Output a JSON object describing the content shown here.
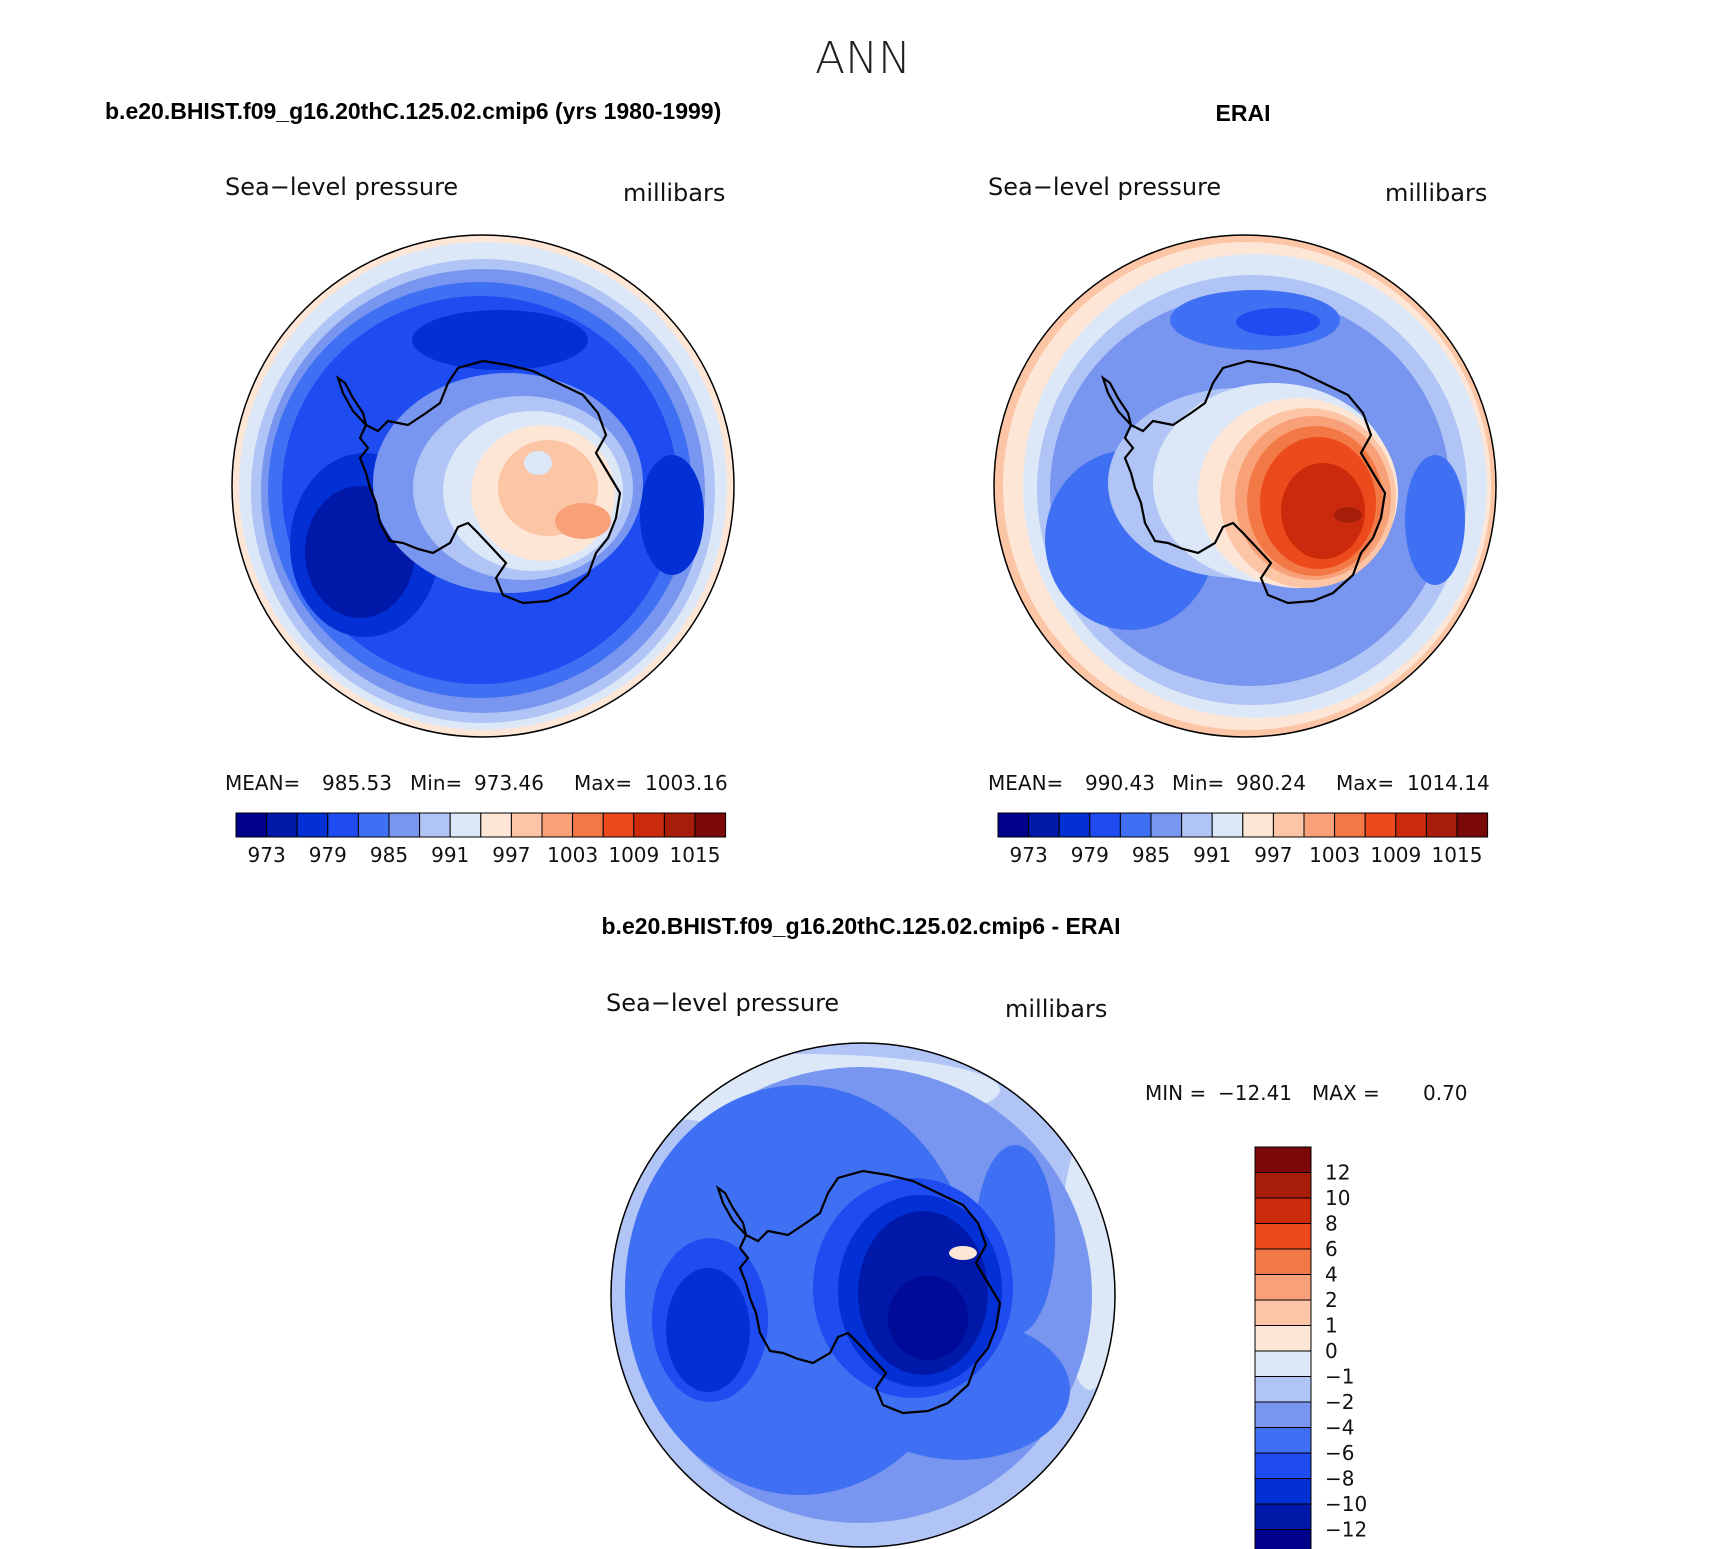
{
  "figure": {
    "title": "ANN",
    "panels": [
      {
        "heading": "b.e20.BHIST.f09_g16.20thC.125.02.cmip6 (yrs 1980-1999)",
        "variable": "Sea−level pressure",
        "units": "millibars",
        "stats": {
          "mean_label": "MEAN=",
          "mean": "985.53",
          "min_label": "Min=",
          "min": "973.46",
          "max_label": "Max=",
          "max": "1003.16"
        }
      },
      {
        "heading": "ERAI",
        "variable": "Sea−level pressure",
        "units": "millibars",
        "stats": {
          "mean_label": "MEAN=",
          "mean": "990.43",
          "min_label": "Min=",
          "min": "980.24",
          "max_label": "Max=",
          "max": "1014.14"
        }
      },
      {
        "heading": "b.e20.BHIST.f09_g16.20thC.125.02.cmip6 - ERAI",
        "variable": "Sea−level pressure",
        "units": "millibars",
        "stats": {
          "min_label": "MIN =",
          "min": "−12.41",
          "max_label": "MAX =",
          "max": "0.70"
        }
      }
    ],
    "abs_colorbar": {
      "colors": [
        "#00008b",
        "#0019a8",
        "#0230d4",
        "#1e4cf0",
        "#3f6ff2",
        "#7896f0",
        "#b0c4f5",
        "#dce8f8",
        "#fde6d6",
        "#fbc5a6",
        "#f8a078",
        "#f27845",
        "#ec4a1c",
        "#cc2a0c",
        "#a61e0a",
        "#7a0808"
      ],
      "labels": [
        "973",
        "979",
        "985",
        "991",
        "997",
        "1003",
        "1009",
        "1015"
      ]
    },
    "diff_colorbar": {
      "colors": [
        "#00008b",
        "#0019a8",
        "#0230d4",
        "#1e4cf0",
        "#3f6ff2",
        "#7896f0",
        "#b0c4f5",
        "#dce8f8",
        "#fde6d6",
        "#fbc5a6",
        "#f8a078",
        "#f27845",
        "#ec4a1c",
        "#cc2a0c",
        "#a61e0a",
        "#7a0808"
      ],
      "labels": [
        "12",
        "10",
        "8",
        "6",
        "4",
        "2",
        "1",
        "0",
        "−1",
        "−2",
        "−4",
        "−6",
        "−8",
        "−10",
        "−12"
      ]
    }
  }
}
